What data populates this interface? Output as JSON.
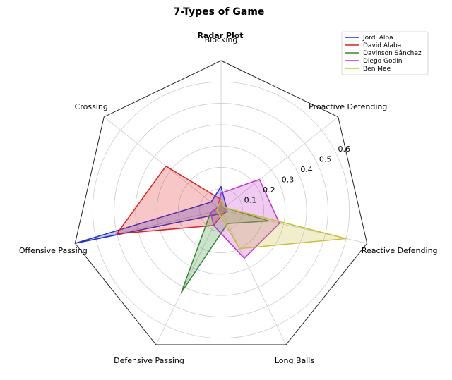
{
  "chart_data": {
    "type": "radar",
    "title": "7-Types of Game",
    "subtitle": "Radar Plot",
    "axes": [
      "Blocking",
      "Proactive Defending",
      "Reactive Defending",
      "Long Balls",
      "Defensive Passing",
      "Offensive Passing",
      "Crossing"
    ],
    "rlim": [
      0,
      0.7
    ],
    "rticks": [
      0.1,
      0.2,
      0.3,
      0.4,
      0.5,
      0.6
    ],
    "rtick_labels": [
      "0.1",
      "0.2",
      "0.3",
      "0.4",
      "0.5",
      "0.6"
    ],
    "grid": true,
    "legend_position": "top-right",
    "series": [
      {
        "name": "Jordi Alba",
        "color": "#1f2fe0",
        "values": [
          0.11,
          0.03,
          0.03,
          0.02,
          0.02,
          0.7,
          0.06
        ]
      },
      {
        "name": "David Alaba",
        "color": "#e02020",
        "values": [
          0.05,
          0.02,
          0.02,
          0.02,
          0.08,
          0.5,
          0.33
        ]
      },
      {
        "name": "Davinson Sánchez",
        "color": "#2f8a2f",
        "values": [
          0.05,
          0.02,
          0.23,
          0.07,
          0.43,
          0.05,
          0.02
        ]
      },
      {
        "name": "Diego Godín",
        "color": "#c030c8",
        "values": [
          0.08,
          0.23,
          0.28,
          0.25,
          0.08,
          0.05,
          0.02
        ]
      },
      {
        "name": "Ben Mee",
        "color": "#c8c030",
        "values": [
          0.05,
          0.02,
          0.6,
          0.2,
          0.02,
          0.02,
          0.02
        ]
      }
    ]
  }
}
